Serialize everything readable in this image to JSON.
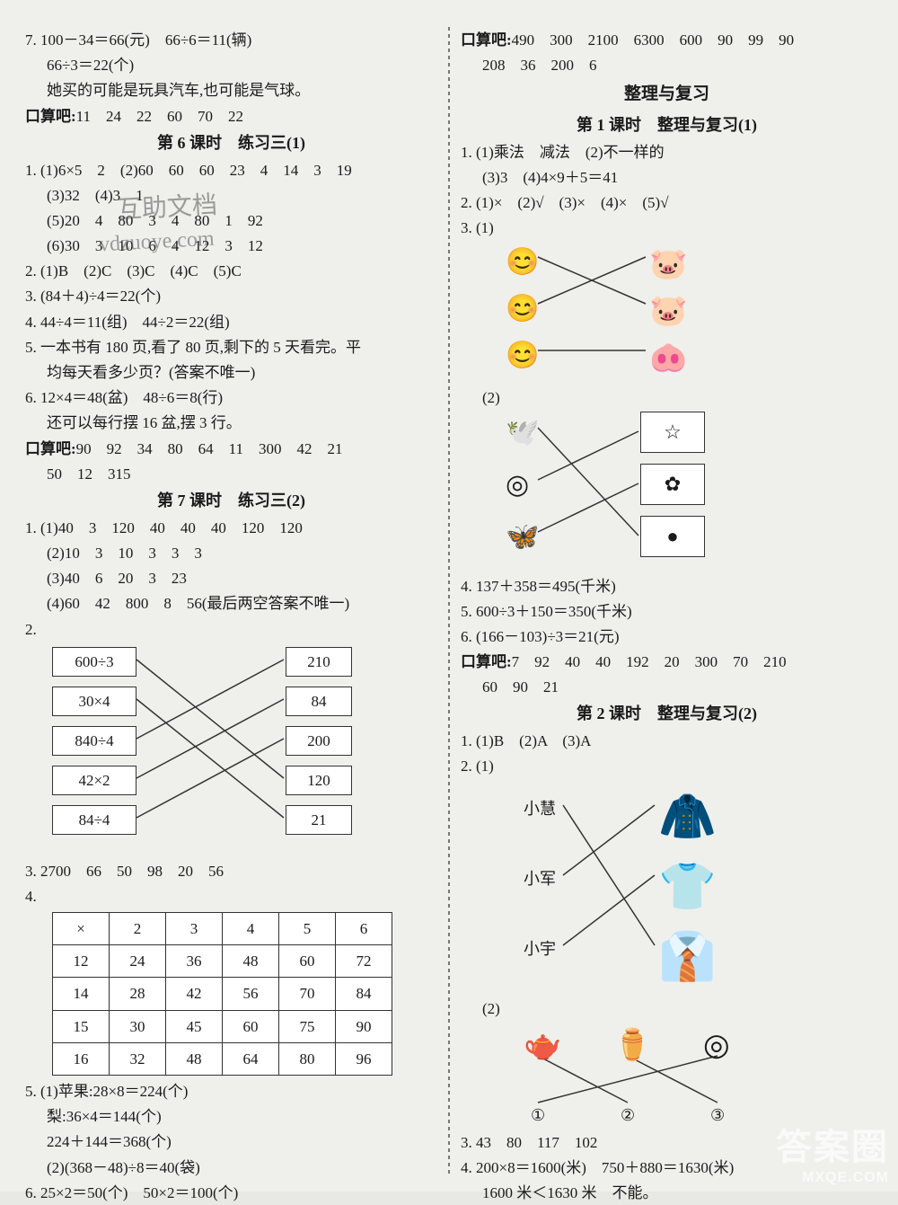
{
  "left": {
    "q7": {
      "l1": "7. 100－34＝66(元)　66÷6＝11(辆)",
      "l2": "66÷3＝22(个)",
      "l3": "她买的可能是玩具汽车,也可能是气球。"
    },
    "kousuan1": {
      "label": "口算吧:",
      "vals": "11　24　22　60　70　22"
    },
    "sec6": {
      "title": "第 6 课时　练习三(1)",
      "q1": {
        "a": "1. (1)6×5　2　(2)60　60　60　23　4　14　3　19",
        "b": "(3)32　(4)3　1",
        "c": "(5)20　4　80　3　4　80　1　92",
        "d": "(6)30　3　10　6　4　12　3　12"
      },
      "q2": "2. (1)B　(2)C　(3)C　(4)C　(5)C",
      "q3": "3. (84＋4)÷4＝22(个)",
      "q4": "4. 44÷4＝11(组)　44÷2＝22(组)",
      "q5a": "5. 一本书有 180 页,看了 80 页,剩下的 5 天看完。平",
      "q5b": "均每天看多少页？(答案不唯一)",
      "q6a": "6. 12×4＝48(盆)　48÷6＝8(行)",
      "q6b": "还可以每行摆 16 盆,摆 3 行。",
      "kousuan": {
        "label": "口算吧:",
        "vals1": "90　92　34　80　64　11　300　42　21",
        "vals2": "50　12　315"
      }
    },
    "sec7": {
      "title": "第 7 课时　练习三(2)",
      "q1": {
        "a": "1. (1)40　3　120　40　40　40　120　120",
        "b": "(2)10　3　10　3　3　3",
        "c": "(3)40　6　20　3　23",
        "d": "(4)60　42　800　8　56(最后两空答案不唯一)"
      },
      "q2": {
        "label": "2.",
        "left": [
          "600÷3",
          "30×4",
          "840÷4",
          "42×2",
          "84÷4"
        ],
        "right": [
          "210",
          "84",
          "200",
          "120",
          "21"
        ],
        "edges": [
          [
            0,
            3
          ],
          [
            1,
            4
          ],
          [
            2,
            0
          ],
          [
            3,
            1
          ],
          [
            4,
            2
          ]
        ],
        "box_border": "#333333",
        "line_color": "#333333"
      },
      "q3": "3. 2700　66　50　98　20　56",
      "q4": {
        "label": "4.",
        "headers": [
          "×",
          "2",
          "3",
          "4",
          "5",
          "6"
        ],
        "rows": [
          [
            "12",
            "24",
            "36",
            "48",
            "60",
            "72"
          ],
          [
            "14",
            "28",
            "42",
            "56",
            "70",
            "84"
          ],
          [
            "15",
            "30",
            "45",
            "60",
            "75",
            "90"
          ],
          [
            "16",
            "32",
            "48",
            "64",
            "80",
            "96"
          ]
        ]
      },
      "q5": {
        "a": "5. (1)苹果:28×8＝224(个)",
        "b": "梨:36×4＝144(个)",
        "c": "224＋144＝368(个)",
        "d": "(2)(368－48)÷8＝40(袋)"
      },
      "q6": "6. 25×2＝50(个)　50×2＝100(个)"
    },
    "watermark": {
      "l1": "互助文档",
      "l2": "vdzuoye.com"
    }
  },
  "right": {
    "kousuan_top": {
      "label": "口算吧:",
      "vals1": "490　300　2100　6300　600　90　99　90",
      "vals2": "208　36　200　6"
    },
    "big_title": "整理与复习",
    "sec1": {
      "title": "第 1 课时　整理与复习(1)",
      "q1a": "1. (1)乘法　减法　(2)不一样的",
      "q1b": "(3)3　(4)4×9＋5＝41",
      "q2": "2. (1)×　(2)√　(3)×　(4)×　(5)√",
      "q3": {
        "label": "3. (1)",
        "left_icons": [
          "child-face-icon",
          "child-face-icon",
          "child-face-icon"
        ],
        "right_icons": [
          "pig-icon",
          "pig-icon",
          "piggy-bank-icon"
        ],
        "edges": [
          [
            0,
            1
          ],
          [
            1,
            0
          ],
          [
            2,
            2
          ]
        ],
        "line_color": "#333333"
      },
      "q3b": {
        "label": "(2)",
        "left_icons": [
          "bird-icon",
          "target-icon",
          "butterfly-icon"
        ],
        "right_shapes": [
          "star",
          "flower",
          "dot"
        ],
        "edges": [
          [
            0,
            2
          ],
          [
            1,
            0
          ],
          [
            2,
            1
          ]
        ],
        "line_color": "#333333"
      },
      "q4": "4. 137＋358＝495(千米)",
      "q5": "5. 600÷3＋150＝350(千米)",
      "q6": "6. (166－103)÷3＝21(元)",
      "kousuan": {
        "label": "口算吧:",
        "vals1": "7　92　40　40　192　20　300　70　210",
        "vals2": "60　90　21"
      }
    },
    "sec2": {
      "title": "第 2 课时　整理与复习(2)",
      "q1": "1. (1)B　(2)A　(3)A",
      "q2": {
        "label": "2. (1)",
        "left_labels": [
          "小慧",
          "小军",
          "小宇"
        ],
        "right_icons": [
          "jacket-icon",
          "coat-icon",
          "clothes-icon"
        ],
        "edges": [
          [
            0,
            2
          ],
          [
            1,
            0
          ],
          [
            2,
            1
          ]
        ],
        "line_color": "#333333"
      },
      "q2b": {
        "label": "(2)",
        "top_icons": [
          "teapot-cup-icon",
          "kettle-icon",
          "disc-magnify-icon"
        ],
        "bottom_labels": [
          "①",
          "②",
          "③"
        ],
        "edges": [
          [
            0,
            1
          ],
          [
            1,
            2
          ],
          [
            2,
            0
          ]
        ],
        "line_color": "#333333"
      },
      "q3": "3. 43　80　117　102",
      "q4a": "4. 200×8＝1600(米)　750＋880＝1630(米)",
      "q4b": "1600 米＜1630 米　不能。"
    }
  },
  "watermark_br": {
    "big": "答案圈",
    "small": "MXQE.COM"
  },
  "colors": {
    "text": "#1a1a1a",
    "bg": "#efefec",
    "line": "#333333"
  }
}
